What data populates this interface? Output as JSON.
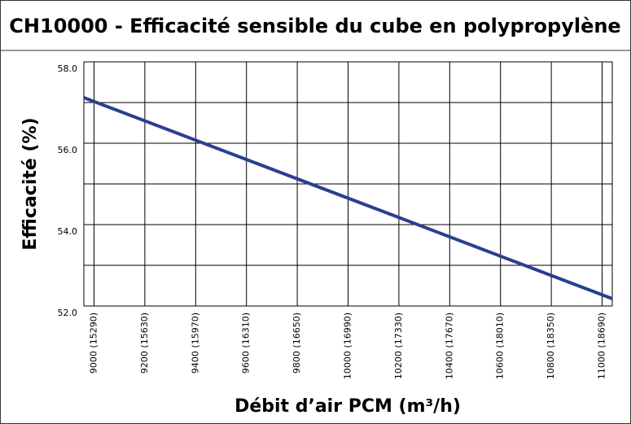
{
  "chart_data": {
    "type": "line",
    "title": "CH10000 - Efficacité sensible du cube en polypropylène",
    "x_label": "Débit d’air PCM (m³/h)",
    "y_label": "Efficacité (%)",
    "x": [
      8960,
      11040
    ],
    "series": [
      {
        "name": "Efficacité",
        "color": "#2a3f8f",
        "values": [
          57.12,
          52.18
        ]
      }
    ],
    "xlim": [
      8960,
      11040
    ],
    "xticks": [
      {
        "value": 9000,
        "label": "9000 (15290)"
      },
      {
        "value": 9200,
        "label": "9200 (15630)"
      },
      {
        "value": 9400,
        "label": "9400 (15970)"
      },
      {
        "value": 9600,
        "label": "9600 (16310)"
      },
      {
        "value": 9800,
        "label": "9800 (16650)"
      },
      {
        "value": 10000,
        "label": "10000 (16990)"
      },
      {
        "value": 10200,
        "label": "10200 (17330)"
      },
      {
        "value": 10400,
        "label": "10400 (17670)"
      },
      {
        "value": 10600,
        "label": "10600 (18010)"
      },
      {
        "value": 10800,
        "label": "10800 (18350)"
      },
      {
        "value": 11000,
        "label": "11000 (18690)"
      }
    ],
    "ylim": [
      52,
      58
    ],
    "yticks": [
      {
        "value": 52,
        "label": "52.0"
      },
      {
        "value": 54,
        "label": "54.0"
      },
      {
        "value": 56,
        "label": "56.0"
      },
      {
        "value": 58,
        "label": "58.0"
      }
    ],
    "y_minor_ticks": [
      53,
      55,
      57
    ],
    "grid": true
  }
}
